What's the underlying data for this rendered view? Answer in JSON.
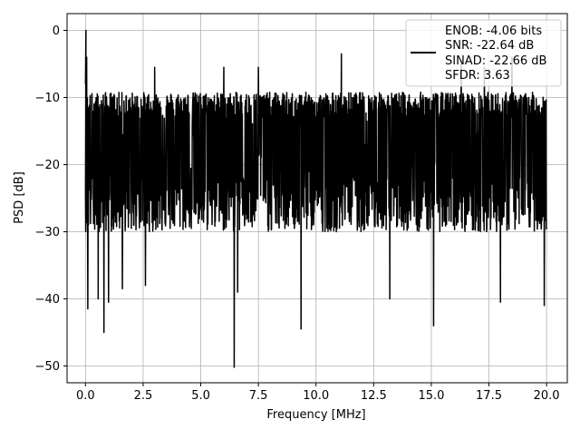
{
  "chart_data": {
    "type": "line",
    "title": "",
    "xlabel": "Frequency [MHz]",
    "ylabel": "PSD [dB]",
    "xlim": [
      -0.8,
      20.9
    ],
    "ylim": [
      -52.5,
      2.5
    ],
    "xticks": [
      0.0,
      2.5,
      5.0,
      7.5,
      10.0,
      12.5,
      15.0,
      17.5,
      20.0
    ],
    "xtick_labels": [
      "0.0",
      "2.5",
      "5.0",
      "7.5",
      "10.0",
      "12.5",
      "15.0",
      "17.5",
      "20.0"
    ],
    "yticks": [
      0,
      -10,
      -20,
      -30,
      -40,
      -50
    ],
    "ytick_labels": [
      "0",
      "−10",
      "−20",
      "−30",
      "−40",
      "−50"
    ],
    "grid": true,
    "legend_position": "top-right",
    "legend_entries": [
      "ENOB: -4.06 bits",
      "SNR: -22.64 dB",
      "SINAD: -22.66 dB",
      "SFDR: 3.63"
    ],
    "series": [
      {
        "color": "#000000",
        "x_start": 0.0,
        "x_end": 20.0,
        "peak": {
          "x": 0.02,
          "y": 0.0
        },
        "baseline_band": [
          -22.0,
          -12.0
        ],
        "notable_minima": [
          {
            "x": 0.1,
            "y": -41.5
          },
          {
            "x": 0.55,
            "y": -40.0
          },
          {
            "x": 0.8,
            "y": -45.0
          },
          {
            "x": 1.0,
            "y": -40.5
          },
          {
            "x": 1.6,
            "y": -38.5
          },
          {
            "x": 2.6,
            "y": -38.0
          },
          {
            "x": 6.45,
            "y": -50.2
          },
          {
            "x": 6.6,
            "y": -39.0
          },
          {
            "x": 9.35,
            "y": -44.5
          },
          {
            "x": 11.1,
            "y": -42.5
          },
          {
            "x": 13.2,
            "y": -40.0
          },
          {
            "x": 15.1,
            "y": -44.0
          },
          {
            "x": 18.0,
            "y": -40.5
          },
          {
            "x": 19.9,
            "y": -41.0
          }
        ],
        "notable_maxima": [
          {
            "x": 0.05,
            "y": -4.0
          },
          {
            "x": 3.0,
            "y": -5.5
          },
          {
            "x": 6.0,
            "y": -5.5
          },
          {
            "x": 7.5,
            "y": -5.5
          },
          {
            "x": 11.1,
            "y": -3.5
          },
          {
            "x": 16.3,
            "y": -4.5
          },
          {
            "x": 17.3,
            "y": -5.5
          },
          {
            "x": 18.5,
            "y": -4.0
          }
        ]
      }
    ]
  }
}
